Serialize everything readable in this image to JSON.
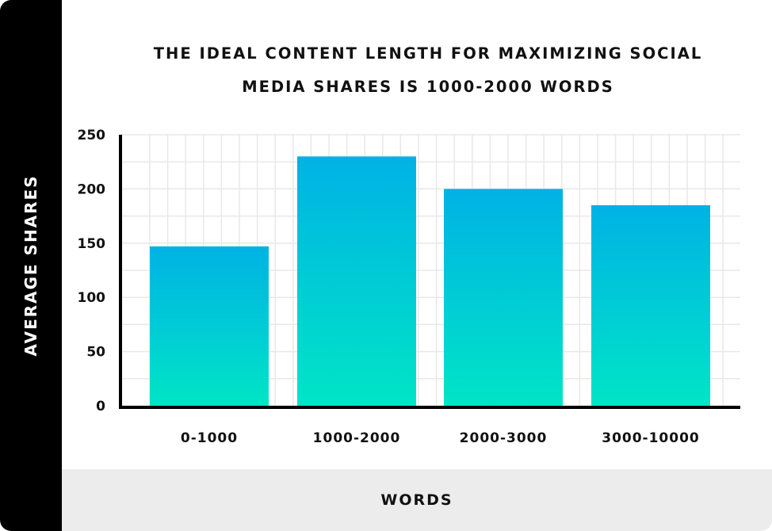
{
  "chart_data": {
    "type": "bar",
    "title_lines": [
      "THE IDEAL CONTENT LENGTH FOR MAXIMIZING SOCIAL",
      "MEDIA SHARES IS 1000-2000 WORDS"
    ],
    "xlabel": "WORDS",
    "ylabel": "AVERAGE SHARES",
    "categories": [
      "0-1000",
      "1000-2000",
      "2000-3000",
      "3000-10000"
    ],
    "values": [
      147,
      230,
      200,
      185
    ],
    "ylim": [
      0,
      250
    ],
    "yticks": [
      0,
      50,
      100,
      150,
      200,
      250
    ],
    "grid": true,
    "legend": "none",
    "colors": {
      "bar_top": "#00b2e5",
      "bar_bottom": "#00e5c6",
      "grid": "#e8e8e8",
      "axis": "#000000"
    }
  }
}
